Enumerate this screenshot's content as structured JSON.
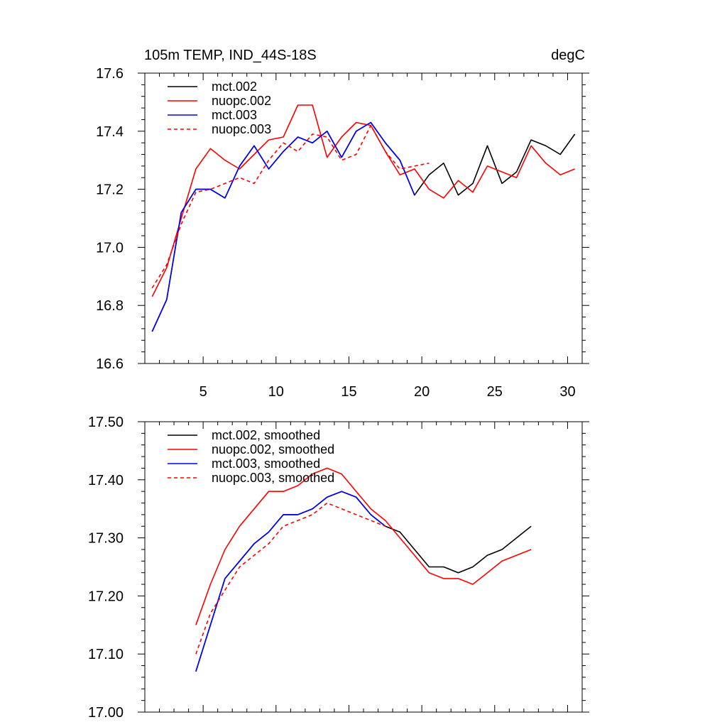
{
  "chart_data": [
    {
      "type": "line",
      "title": "105m TEMP, IND_44S-18S",
      "units_label": "degC",
      "xlabel": "",
      "ylabel": "",
      "xlim": [
        1,
        31
      ],
      "ylim": [
        16.6,
        17.6
      ],
      "x_major_ticks": [
        5,
        10,
        15,
        20,
        25,
        30
      ],
      "x_tick_labels": [
        "5",
        "10",
        "15",
        "20",
        "25",
        "30"
      ],
      "y_major_ticks": [
        16.6,
        16.8,
        17.0,
        17.2,
        17.4,
        17.6
      ],
      "y_tick_labels": [
        "16.6",
        "16.8",
        "17.0",
        "17.2",
        "17.4",
        "17.6"
      ],
      "legend_position": "top-left",
      "series": [
        {
          "name": "mct.002",
          "color": "#000000",
          "dash": "solid",
          "x": [
            1.5,
            2.5,
            3.5,
            4.5,
            5.5,
            6.5,
            7.5,
            8.5,
            9.5,
            10.5,
            11.5,
            12.5,
            13.5,
            14.5,
            15.5,
            16.5,
            17.5,
            18.5,
            19.5,
            20.5,
            21.5,
            22.5,
            23.5,
            24.5,
            25.5,
            26.5,
            27.5,
            28.5,
            29.5,
            30.5
          ],
          "values": [
            16.71,
            16.82,
            17.12,
            17.2,
            17.2,
            17.17,
            17.28,
            17.35,
            17.27,
            17.33,
            17.38,
            17.36,
            17.4,
            17.31,
            17.4,
            17.43,
            17.36,
            17.3,
            17.18,
            17.25,
            17.29,
            17.18,
            17.22,
            17.35,
            17.22,
            17.26,
            17.37,
            17.35,
            17.32,
            17.39
          ]
        },
        {
          "name": "nuopc.002",
          "color": "#ff0000",
          "dash": "solid",
          "x": [
            1.5,
            2.5,
            3.5,
            4.5,
            5.5,
            6.5,
            7.5,
            8.5,
            9.5,
            10.5,
            11.5,
            12.5,
            13.5,
            14.5,
            15.5,
            16.5,
            17.5,
            18.5,
            19.5,
            20.5,
            21.5,
            22.5,
            23.5,
            24.5,
            25.5,
            26.5,
            27.5,
            28.5,
            29.5,
            30.5
          ],
          "values": [
            16.83,
            16.93,
            17.1,
            17.27,
            17.34,
            17.3,
            17.27,
            17.32,
            17.37,
            17.38,
            17.49,
            17.49,
            17.31,
            17.38,
            17.43,
            17.42,
            17.33,
            17.25,
            17.27,
            17.2,
            17.17,
            17.23,
            17.19,
            17.28,
            17.26,
            17.24,
            17.35,
            17.29,
            17.25,
            17.27
          ]
        },
        {
          "name": "mct.003",
          "color": "#0000ff",
          "dash": "solid",
          "x": [
            1.5,
            2.5,
            3.5,
            4.5,
            5.5,
            6.5,
            7.5,
            8.5,
            9.5,
            10.5,
            11.5,
            12.5,
            13.5,
            14.5,
            15.5,
            16.5,
            17.5,
            18.5,
            19.5
          ],
          "values": [
            16.71,
            16.82,
            17.12,
            17.2,
            17.2,
            17.17,
            17.28,
            17.35,
            17.27,
            17.33,
            17.38,
            17.36,
            17.4,
            17.31,
            17.4,
            17.43,
            17.36,
            17.3,
            17.18
          ]
        },
        {
          "name": "nuopc.003",
          "color": "#ff0000",
          "dash": "dashed",
          "x": [
            1.5,
            2.5,
            3.5,
            4.5,
            5.5,
            6.5,
            7.5,
            8.5,
            9.5,
            10.5,
            11.5,
            12.5,
            13.5,
            14.5,
            15.5,
            16.5,
            17.5,
            18.5,
            19.5,
            20.5
          ],
          "values": [
            16.86,
            16.94,
            17.08,
            17.19,
            17.2,
            17.22,
            17.24,
            17.22,
            17.3,
            17.36,
            17.33,
            17.39,
            17.38,
            17.3,
            17.32,
            17.42,
            17.33,
            17.27,
            17.28,
            17.29
          ]
        }
      ]
    },
    {
      "type": "line",
      "title": "",
      "xlabel": "",
      "ylabel": "",
      "xlim": [
        1,
        31
      ],
      "ylim": [
        17.0,
        17.5
      ],
      "x_major_ticks": [
        5,
        10,
        15,
        20,
        25,
        30
      ],
      "x_tick_labels": [],
      "y_major_ticks": [
        17.0,
        17.1,
        17.2,
        17.3,
        17.4,
        17.5
      ],
      "y_tick_labels": [
        "17.00",
        "17.10",
        "17.20",
        "17.30",
        "17.40",
        "17.50"
      ],
      "legend_position": "top-left",
      "series": [
        {
          "name": "mct.002, smoothed",
          "color": "#000000",
          "dash": "solid",
          "x": [
            4.5,
            5.5,
            6.5,
            7.5,
            8.5,
            9.5,
            10.5,
            11.5,
            12.5,
            13.5,
            14.5,
            15.5,
            16.5,
            17.5,
            18.5,
            19.5,
            20.5,
            21.5,
            22.5,
            23.5,
            24.5,
            25.5,
            26.5,
            27.5
          ],
          "values": [
            17.07,
            17.15,
            17.23,
            17.26,
            17.29,
            17.31,
            17.34,
            17.34,
            17.35,
            17.37,
            17.38,
            17.37,
            17.34,
            17.32,
            17.31,
            17.28,
            17.25,
            17.25,
            17.24,
            17.25,
            17.27,
            17.28,
            17.3,
            17.32
          ]
        },
        {
          "name": "nuopc.002, smoothed",
          "color": "#ff0000",
          "dash": "solid",
          "x": [
            4.5,
            5.5,
            6.5,
            7.5,
            8.5,
            9.5,
            10.5,
            11.5,
            12.5,
            13.5,
            14.5,
            15.5,
            16.5,
            17.5,
            18.5,
            19.5,
            20.5,
            21.5,
            22.5,
            23.5,
            24.5,
            25.5,
            26.5,
            27.5
          ],
          "values": [
            17.15,
            17.22,
            17.28,
            17.32,
            17.35,
            17.38,
            17.38,
            17.39,
            17.41,
            17.42,
            17.41,
            17.38,
            17.35,
            17.33,
            17.3,
            17.27,
            17.24,
            17.23,
            17.23,
            17.22,
            17.24,
            17.26,
            17.27,
            17.28
          ]
        },
        {
          "name": "mct.003, smoothed",
          "color": "#0000ff",
          "dash": "solid",
          "x": [
            4.5,
            5.5,
            6.5,
            7.5,
            8.5,
            9.5,
            10.5,
            11.5,
            12.5,
            13.5,
            14.5,
            15.5,
            16.5,
            17.5
          ],
          "values": [
            17.07,
            17.15,
            17.23,
            17.26,
            17.29,
            17.31,
            17.34,
            17.34,
            17.35,
            17.37,
            17.38,
            17.37,
            17.34,
            17.32
          ]
        },
        {
          "name": "nuopc.003, smoothed",
          "color": "#ff0000",
          "dash": "dashed",
          "x": [
            4.5,
            5.5,
            6.5,
            7.5,
            8.5,
            9.5,
            10.5,
            11.5,
            12.5,
            13.5,
            14.5,
            15.5,
            16.5,
            17.5
          ],
          "values": [
            17.1,
            17.17,
            17.21,
            17.25,
            17.27,
            17.29,
            17.32,
            17.33,
            17.34,
            17.36,
            17.35,
            17.34,
            17.33,
            17.32
          ]
        }
      ]
    }
  ]
}
